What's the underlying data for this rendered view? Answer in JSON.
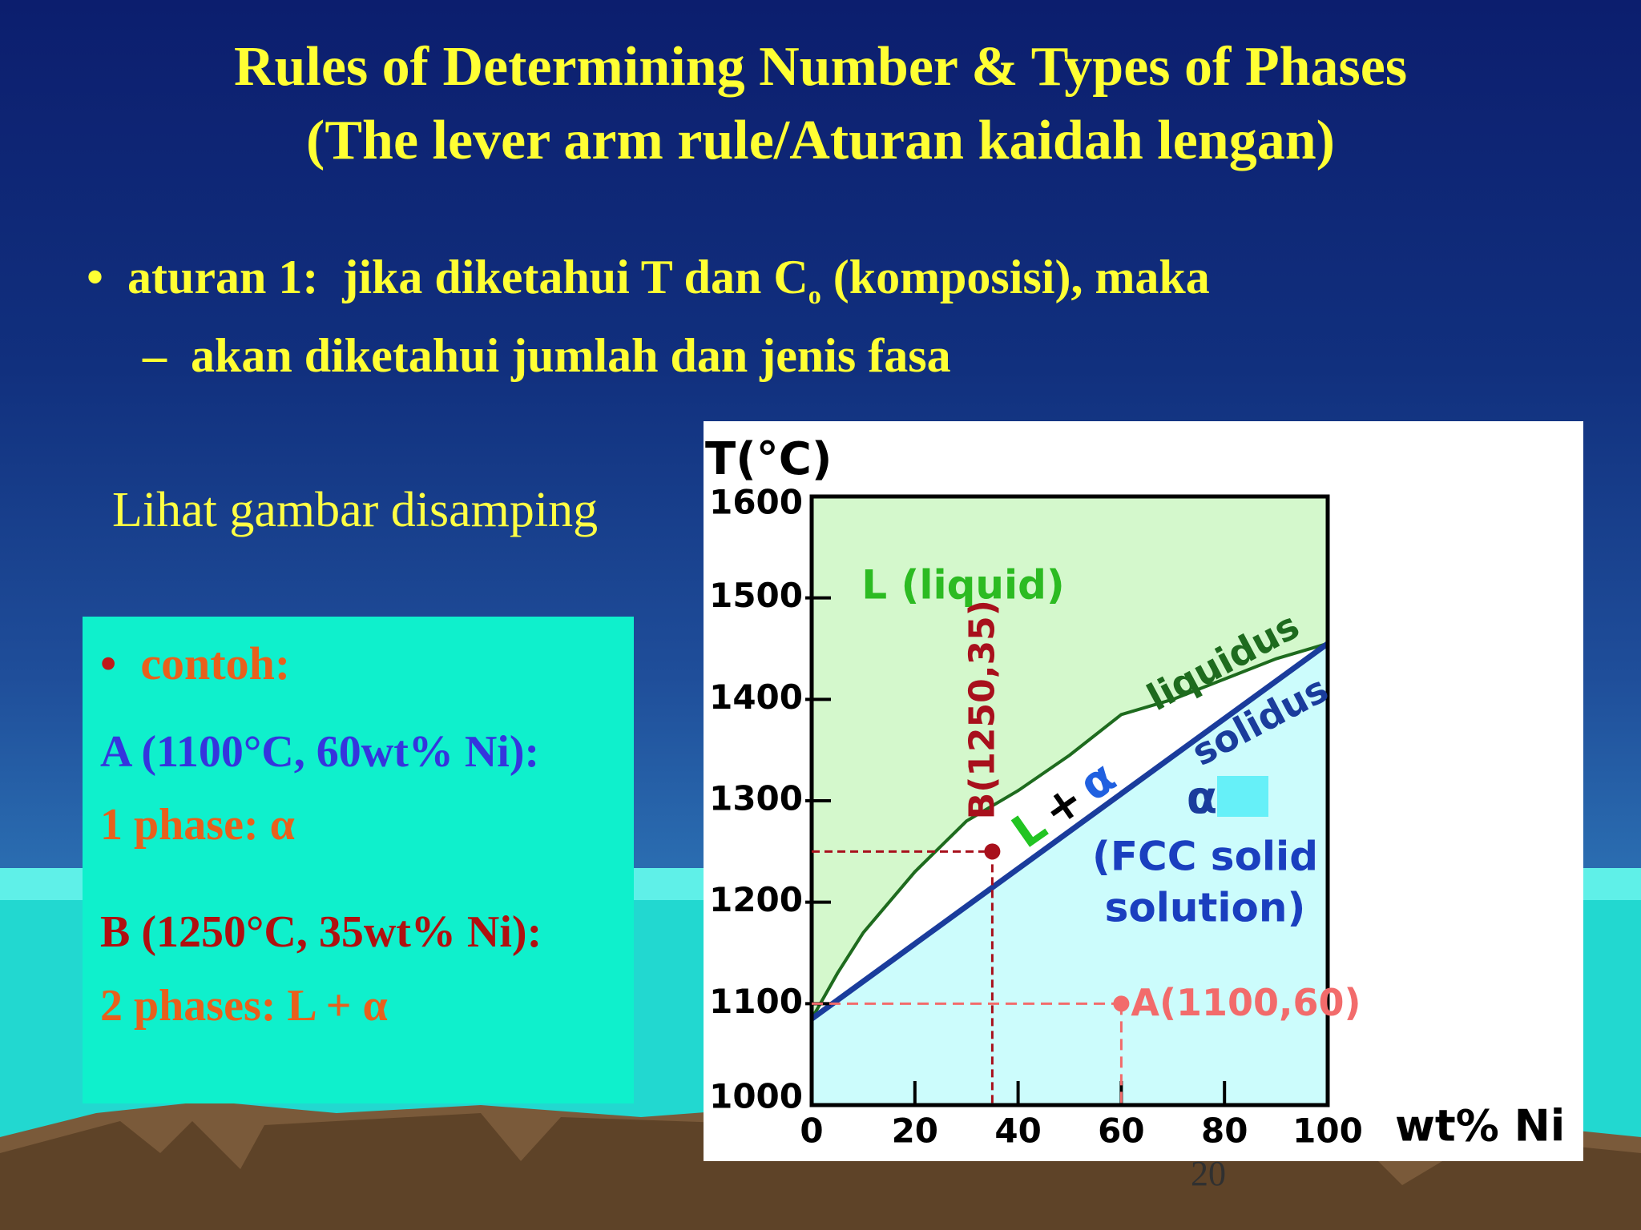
{
  "title": [
    "Rules of Determining Number & Types of Phases",
    "(The lever arm rule/Aturan kaidah lengan)"
  ],
  "bullet": "•",
  "dash": "–",
  "rule": {
    "before": "aturan 1:  jika diketahui T dan C",
    "subscript": "o",
    "after": " (komposisi), maka"
  },
  "sub_rule": "akan diketahui jumlah dan jenis fasa",
  "note": "Lihat gambar disamping",
  "example": {
    "heading": "contoh:",
    "a_label": "A (1100°C, 60wt% Ni):",
    "a_result": "1 phase: α",
    "b_label": "B (1250°C, 35wt% Ni):",
    "b_result": "2 phases: L + α"
  },
  "page_number": "20",
  "chart_data": {
    "type": "phase-diagram",
    "ylabel": "T(°C)",
    "xlabel": "wt% Ni",
    "xlim": [
      0,
      100
    ],
    "ylim": [
      1000,
      1600
    ],
    "xticks": [
      0,
      20,
      40,
      60,
      80,
      100
    ],
    "yticks": [
      1000,
      1100,
      1200,
      1300,
      1400,
      1500,
      1600
    ],
    "liquidus": {
      "name": "liquidus",
      "color": "#1e6b1e",
      "x": [
        0,
        5,
        10,
        20,
        30,
        40,
        50,
        60,
        70,
        80,
        90,
        100
      ],
      "y": [
        1085,
        1130,
        1170,
        1230,
        1280,
        1310,
        1345,
        1385,
        1400,
        1420,
        1440,
        1455
      ]
    },
    "solidus": {
      "name": "solidus",
      "color": "#1a3c9c",
      "x": [
        0,
        100
      ],
      "y": [
        1085,
        1455
      ]
    },
    "liquid_label": "L (liquid)",
    "two_phase_label": [
      "L",
      "+",
      "α"
    ],
    "alpha_label": "α",
    "alpha_desc": [
      "(FCC solid",
      "solution)"
    ],
    "points": [
      {
        "label": "A(1100,60)",
        "x": 60,
        "y": 1100,
        "color": "#f26b6b"
      },
      {
        "label": "B(1250,35)",
        "x": 35,
        "y": 1250,
        "color": "#a8101c"
      }
    ]
  }
}
